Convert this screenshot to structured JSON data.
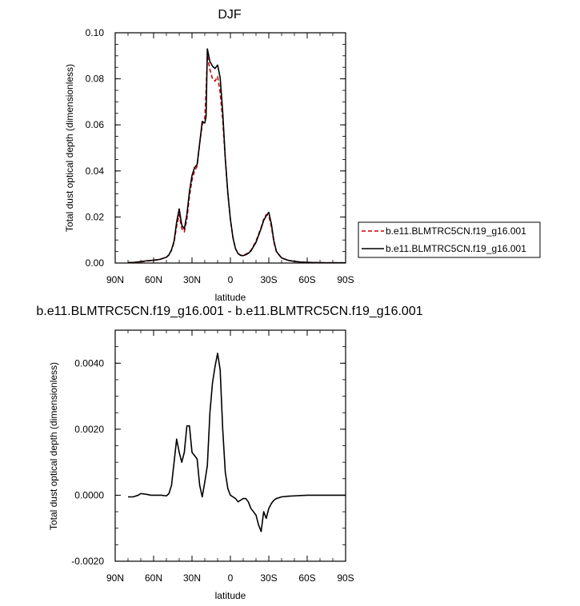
{
  "chart_data": [
    {
      "type": "line",
      "title": "DJF",
      "xlabel": "latitude",
      "ylabel": "Total dust optical depth (dimensionless)",
      "xlim": [
        90,
        -90
      ],
      "ylim": [
        0,
        0.1
      ],
      "x_ticks": [
        90,
        60,
        30,
        0,
        -30,
        -60,
        -90
      ],
      "x_tick_labels": [
        "90N",
        "60N",
        "30N",
        "0",
        "30S",
        "60S",
        "90S"
      ],
      "y_ticks": [
        0,
        0.02,
        0.04,
        0.06,
        0.08,
        0.1
      ],
      "y_tick_labels": [
        "0.00",
        "0.02",
        "0.04",
        "0.06",
        "0.08",
        "0.10"
      ],
      "legend_position": "right",
      "series": [
        {
          "name": "b.e11.BLMTRC5CN.f19_g16.001",
          "color": "#cc0000",
          "style": "dashed",
          "x": [
            80,
            75,
            70,
            65,
            60,
            55,
            50,
            48,
            46,
            44,
            42,
            40,
            38,
            36,
            34,
            32,
            30,
            28,
            26,
            24,
            22,
            20,
            19,
            18,
            16,
            14,
            12,
            10,
            8,
            6,
            4,
            2,
            0,
            -2,
            -4,
            -6,
            -8,
            -10,
            -12,
            -14,
            -16,
            -18,
            -20,
            -22,
            -24,
            -26,
            -28,
            -30,
            -32,
            -34,
            -36,
            -40,
            -45,
            -50,
            -55,
            -60,
            -65,
            -70,
            -75,
            -80,
            -85,
            -90
          ],
          "values": [
            0.0002,
            0.0003,
            0.0005,
            0.0009,
            0.0012,
            0.0016,
            0.0025,
            0.0035,
            0.0055,
            0.009,
            0.016,
            0.021,
            0.015,
            0.0135,
            0.019,
            0.029,
            0.036,
            0.04,
            0.042,
            0.052,
            0.06,
            0.063,
            0.075,
            0.09,
            0.084,
            0.08,
            0.079,
            0.081,
            0.074,
            0.062,
            0.045,
            0.03,
            0.019,
            0.011,
            0.0062,
            0.0042,
            0.0034,
            0.0034,
            0.0038,
            0.0045,
            0.0055,
            0.0075,
            0.0095,
            0.0125,
            0.0155,
            0.019,
            0.021,
            0.0205,
            0.0158,
            0.009,
            0.0048,
            0.0022,
            0.0012,
            0.0007,
            0.0004,
            0.0003,
            0.0002,
            0.00015,
            0.0001,
            0.0001,
            0.0001,
            0.0001
          ]
        },
        {
          "name": "b.e11.BLMTRC5CN.f19_g16.001",
          "color": "#000000",
          "style": "solid",
          "x": [
            80,
            75,
            70,
            65,
            60,
            55,
            50,
            48,
            46,
            44,
            42,
            40,
            38,
            36,
            34,
            32,
            30,
            28,
            26,
            24,
            22,
            20,
            19,
            18,
            16,
            14,
            12,
            10,
            8,
            6,
            4,
            2,
            0,
            -2,
            -4,
            -6,
            -8,
            -10,
            -12,
            -14,
            -16,
            -18,
            -20,
            -22,
            -24,
            -26,
            -28,
            -30,
            -32,
            -34,
            -36,
            -40,
            -45,
            -50,
            -55,
            -60,
            -65,
            -70,
            -75,
            -80,
            -85,
            -90
          ],
          "values": [
            0.0002,
            0.0003,
            0.0006,
            0.001,
            0.0012,
            0.0016,
            0.0025,
            0.0036,
            0.0058,
            0.0095,
            0.0178,
            0.0235,
            0.0165,
            0.0148,
            0.021,
            0.031,
            0.038,
            0.0415,
            0.0428,
            0.052,
            0.0615,
            0.0608,
            0.0635,
            0.093,
            0.0875,
            0.0855,
            0.0845,
            0.086,
            0.0805,
            0.0655,
            0.0455,
            0.0305,
            0.019,
            0.011,
            0.0062,
            0.0041,
            0.0033,
            0.0032,
            0.0036,
            0.0042,
            0.0052,
            0.0071,
            0.009,
            0.012,
            0.015,
            0.0185,
            0.0205,
            0.022,
            0.017,
            0.0095,
            0.005,
            0.0022,
            0.0012,
            0.0007,
            0.0004,
            0.0003,
            0.0002,
            0.00015,
            0.0001,
            0.0001,
            0.0001,
            0.0001
          ]
        }
      ]
    },
    {
      "type": "line",
      "title": "b.e11.BLMTRC5CN.f19_g16.001 - b.e11.BLMTRC5CN.f19_g16.001",
      "xlabel": "latitude",
      "ylabel": "Total dust optical depth (dimensionless)",
      "xlim": [
        90,
        -90
      ],
      "ylim": [
        -0.002,
        0.005
      ],
      "x_ticks": [
        90,
        60,
        30,
        0,
        -30,
        -60,
        -90
      ],
      "x_tick_labels": [
        "90N",
        "60N",
        "30N",
        "0",
        "30S",
        "60S",
        "90S"
      ],
      "y_ticks": [
        -0.002,
        0,
        0.002,
        0.004
      ],
      "y_tick_labels": [
        "-0.0020",
        "0.0000",
        "0.0020",
        "0.0040"
      ],
      "series": [
        {
          "color": "#000000",
          "style": "solid",
          "x": [
            80,
            76,
            72,
            70,
            66,
            62,
            58,
            54,
            50,
            48,
            46,
            44,
            42,
            40,
            38,
            36,
            34,
            32,
            30,
            28,
            26,
            24,
            22,
            20,
            18,
            16,
            14,
            12,
            10,
            8,
            6,
            4,
            2,
            0,
            -2,
            -4,
            -6,
            -8,
            -10,
            -12,
            -14,
            -16,
            -18,
            -20,
            -22,
            -24,
            -26,
            -28,
            -30,
            -32,
            -34,
            -36,
            -40,
            -45,
            -50,
            -55,
            -60,
            -65,
            -70,
            -75,
            -80,
            -85,
            -90
          ],
          "values": [
            -5e-05,
            -5e-05,
            0.0,
            5e-05,
            3e-05,
            0.0,
            0.0,
            0.0,
            -2e-05,
            5e-05,
            0.0003,
            0.001,
            0.0017,
            0.0013,
            0.001,
            0.0013,
            0.0021,
            0.0021,
            0.0013,
            0.0012,
            0.0011,
            0.0003,
            -5e-05,
            0.0004,
            0.0009,
            0.0025,
            0.0034,
            0.0039,
            0.0043,
            0.0038,
            0.002,
            0.0007,
            0.0002,
            0.0,
            -5e-05,
            -0.0001,
            -0.0002,
            -0.00015,
            -0.0001,
            -0.0001,
            -0.0002,
            -0.0004,
            -0.0005,
            -0.0006,
            -0.0009,
            -0.0011,
            -0.0005,
            -0.0007,
            -0.0004,
            -0.00025,
            -0.00015,
            -0.0001,
            -5e-05,
            -3e-05,
            -2e-05,
            -1e-05,
            0.0,
            0.0,
            0.0,
            0.0,
            0.0,
            0.0,
            0.0
          ]
        }
      ]
    }
  ]
}
